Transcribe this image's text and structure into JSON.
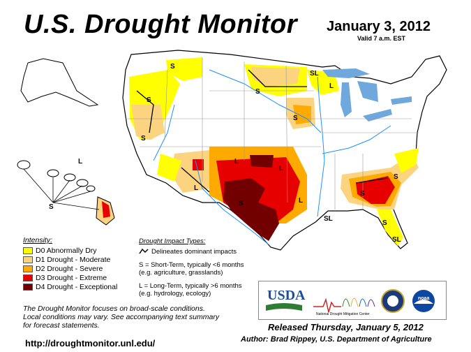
{
  "title": "U.S. Drought Monitor",
  "date": "January 3, 2012",
  "valid": "Valid 7 a.m. EST",
  "colors": {
    "D0": "#ffff00",
    "D1": "#fcd37f",
    "D2": "#ffaa00",
    "D3": "#e60000",
    "D4": "#730000",
    "water": "#1e90ff",
    "lake": "#6fa8dc"
  },
  "legend": {
    "header": "Intensity:",
    "items": [
      {
        "code": "D0",
        "label": "D0 Abnormally Dry"
      },
      {
        "code": "D1",
        "label": "D1 Drought - Moderate"
      },
      {
        "code": "D2",
        "label": "D2 Drought - Severe"
      },
      {
        "code": "D3",
        "label": "D3 Drought - Extreme"
      },
      {
        "code": "D4",
        "label": "D4 Drought - Exceptional"
      }
    ]
  },
  "impact": {
    "header": "Drought Impact Types:",
    "line1": "Delineates dominant impacts",
    "line2": "S = Short-Term, typically <6 months",
    "line3": "(e.g. agriculture, grasslands)",
    "line4": "L = Long-Term, typically >6 months",
    "line5": "(e.g. hydrology, ecology)"
  },
  "note": {
    "line1": "The Drought Monitor focuses on broad-scale conditions.",
    "line2": "Local conditions may vary. See accompanying text summary",
    "line3": "for forecast statements."
  },
  "url": "http://droughtmonitor.unl.edu/",
  "released": "Released Thursday, January 5, 2012",
  "author": "Author: Brad Rippey, U.S. Department of Agriculture",
  "logos": {
    "usda": "USDA",
    "ndmc": "National Drought Mitigation Center",
    "noaa": "noaa"
  },
  "map_labels": {
    "s": "S",
    "l": "L",
    "sl": "SL"
  }
}
